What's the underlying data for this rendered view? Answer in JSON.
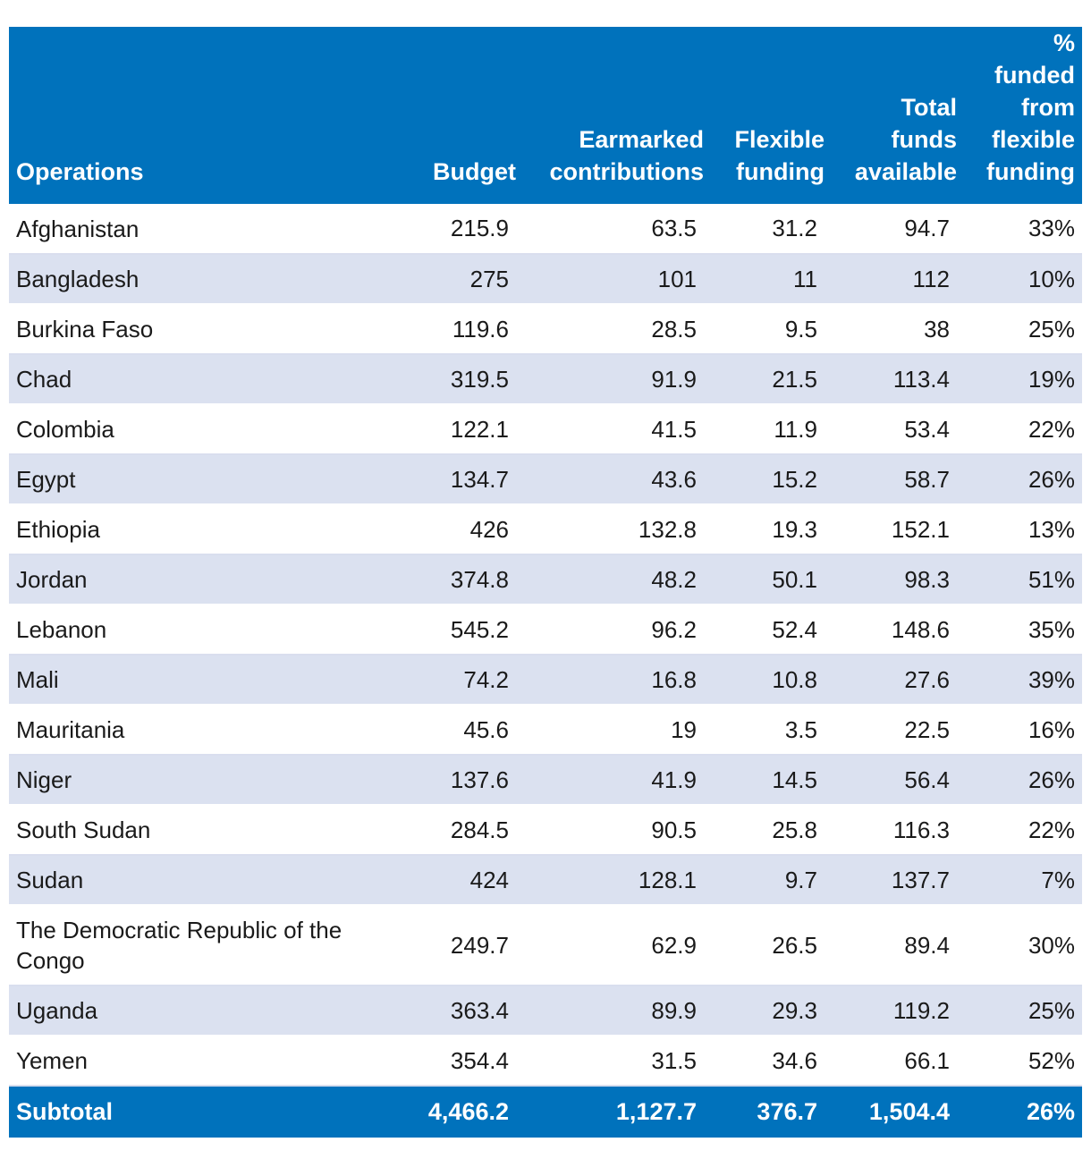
{
  "headers": {
    "operations": "Operations",
    "budget": "Budget",
    "earmarked_1": "Earmarked",
    "earmarked_2": "contributions",
    "flexible_1": "Flexible",
    "flexible_2": "funding",
    "total_1": "Total",
    "total_2": "funds",
    "total_3": "available",
    "pct_1": "%",
    "pct_2": "funded",
    "pct_3": "from",
    "pct_4": "flexible",
    "pct_5": "funding"
  },
  "rows": [
    {
      "operation": "Afghanistan",
      "budget": "215.9",
      "earmarked": "63.5",
      "flexible": "31.2",
      "total": "94.7",
      "pct": "33%"
    },
    {
      "operation": "Bangladesh",
      "budget": "275",
      "earmarked": "101",
      "flexible": "11",
      "total": "112",
      "pct": "10%"
    },
    {
      "operation": "Burkina Faso",
      "budget": "119.6",
      "earmarked": "28.5",
      "flexible": "9.5",
      "total": "38",
      "pct": "25%"
    },
    {
      "operation": "Chad",
      "budget": "319.5",
      "earmarked": "91.9",
      "flexible": "21.5",
      "total": "113.4",
      "pct": "19%"
    },
    {
      "operation": "Colombia",
      "budget": "122.1",
      "earmarked": "41.5",
      "flexible": "11.9",
      "total": "53.4",
      "pct": "22%"
    },
    {
      "operation": "Egypt",
      "budget": "134.7",
      "earmarked": "43.6",
      "flexible": "15.2",
      "total": "58.7",
      "pct": "26%"
    },
    {
      "operation": "Ethiopia",
      "budget": "426",
      "earmarked": "132.8",
      "flexible": "19.3",
      "total": "152.1",
      "pct": "13%"
    },
    {
      "operation": "Jordan",
      "budget": "374.8",
      "earmarked": "48.2",
      "flexible": "50.1",
      "total": "98.3",
      "pct": "51%"
    },
    {
      "operation": "Lebanon",
      "budget": "545.2",
      "earmarked": "96.2",
      "flexible": "52.4",
      "total": "148.6",
      "pct": "35%"
    },
    {
      "operation": "Mali",
      "budget": "74.2",
      "earmarked": "16.8",
      "flexible": "10.8",
      "total": "27.6",
      "pct": "39%"
    },
    {
      "operation": "Mauritania",
      "budget": "45.6",
      "earmarked": "19",
      "flexible": "3.5",
      "total": "22.5",
      "pct": "16%"
    },
    {
      "operation": "Niger",
      "budget": "137.6",
      "earmarked": "41.9",
      "flexible": "14.5",
      "total": "56.4",
      "pct": "26%"
    },
    {
      "operation": "South Sudan",
      "budget": "284.5",
      "earmarked": "90.5",
      "flexible": "25.8",
      "total": "116.3",
      "pct": "22%"
    },
    {
      "operation": "Sudan",
      "budget": "424",
      "earmarked": "128.1",
      "flexible": "9.7",
      "total": "137.7",
      "pct": "7%"
    },
    {
      "operation": "The Democratic Republic of the Congo",
      "budget": "249.7",
      "earmarked": "62.9",
      "flexible": "26.5",
      "total": "89.4",
      "pct": "30%"
    },
    {
      "operation": "Uganda",
      "budget": "363.4",
      "earmarked": "89.9",
      "flexible": "29.3",
      "total": "119.2",
      "pct": "25%"
    },
    {
      "operation": "Yemen",
      "budget": "354.4",
      "earmarked": "31.5",
      "flexible": "34.6",
      "total": "66.1",
      "pct": "52%"
    }
  ],
  "subtotal": {
    "label": "Subtotal",
    "budget": "4,466.2",
    "earmarked": "1,127.7",
    "flexible": "376.7",
    "total": "1,504.4",
    "pct": "26%"
  }
}
